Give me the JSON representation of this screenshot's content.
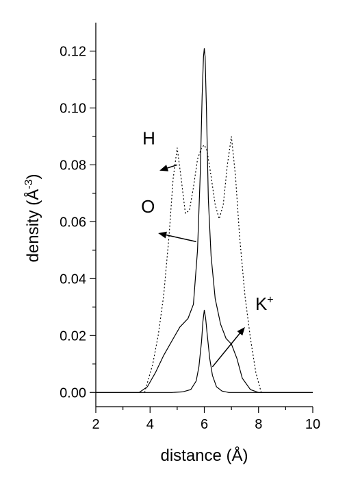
{
  "chart_data": {
    "type": "line",
    "xlabel": "distance (Å)",
    "ylabel": "density (Å",
    "ylabel_sup": "-3",
    "ylabel_close": ")",
    "xlim": [
      2,
      10
    ],
    "ylim": [
      -0.005,
      0.13
    ],
    "x_ticks": [
      2,
      4,
      6,
      8,
      10
    ],
    "x_tick_labels": [
      "2",
      "4",
      "6",
      "8",
      "10"
    ],
    "y_ticks": [
      0.0,
      0.02,
      0.04,
      0.06,
      0.08,
      0.1,
      0.12
    ],
    "y_tick_labels": [
      "0.00",
      "0.02",
      "0.04",
      "0.06",
      "0.08",
      "0.10",
      "0.12"
    ],
    "grid": false,
    "legend": "none",
    "series": [
      {
        "name": "H",
        "style": "dotted",
        "x": [
          3.8,
          4.1,
          4.3,
          4.5,
          4.7,
          4.85,
          5.0,
          5.15,
          5.3,
          5.45,
          5.6,
          5.75,
          5.9,
          6.0,
          6.1,
          6.25,
          6.4,
          6.55,
          6.7,
          6.85,
          7.0,
          7.15,
          7.3,
          7.5,
          7.7,
          7.9,
          8.1
        ],
        "y": [
          0.0,
          0.01,
          0.02,
          0.034,
          0.055,
          0.075,
          0.086,
          0.075,
          0.063,
          0.064,
          0.072,
          0.082,
          0.086,
          0.087,
          0.085,
          0.076,
          0.066,
          0.061,
          0.066,
          0.08,
          0.09,
          0.076,
          0.055,
          0.034,
          0.019,
          0.007,
          0.0
        ]
      },
      {
        "name": "O",
        "style": "solid",
        "x": [
          2.0,
          3.6,
          3.9,
          4.2,
          4.5,
          4.8,
          5.1,
          5.4,
          5.6,
          5.75,
          5.85,
          5.92,
          5.97,
          6.0,
          6.03,
          6.08,
          6.15,
          6.25,
          6.4,
          6.6,
          6.8,
          7.0,
          7.2,
          7.4,
          7.7,
          8.0,
          10.0
        ],
        "y": [
          0.0,
          0.0,
          0.002,
          0.007,
          0.013,
          0.018,
          0.023,
          0.026,
          0.031,
          0.05,
          0.077,
          0.104,
          0.118,
          0.121,
          0.118,
          0.099,
          0.068,
          0.048,
          0.033,
          0.024,
          0.019,
          0.017,
          0.012,
          0.005,
          0.001,
          0.0,
          0.0
        ]
      },
      {
        "name": "K⁺",
        "style": "solid",
        "x": [
          2.0,
          4.8,
          5.2,
          5.5,
          5.7,
          5.8,
          5.9,
          5.95,
          6.0,
          6.05,
          6.1,
          6.2,
          6.3,
          6.45,
          6.65,
          6.9,
          7.2,
          10.0
        ],
        "y": [
          0.0,
          0.0,
          0.0002,
          0.001,
          0.004,
          0.009,
          0.018,
          0.025,
          0.029,
          0.026,
          0.021,
          0.012,
          0.006,
          0.002,
          0.0005,
          0.0,
          0.0,
          0.0
        ]
      }
    ],
    "annotations": [
      {
        "text": "H",
        "arrow_from": [
          5.0,
          0.08
        ],
        "arrow_to": [
          4.35,
          0.078
        ]
      },
      {
        "text": "O",
        "arrow_from": [
          5.7,
          0.053
        ],
        "arrow_to": [
          4.3,
          0.056
        ]
      },
      {
        "text": "K",
        "sup": "+",
        "arrow_from": [
          6.3,
          0.009
        ],
        "arrow_to": [
          7.5,
          0.023
        ]
      }
    ]
  }
}
